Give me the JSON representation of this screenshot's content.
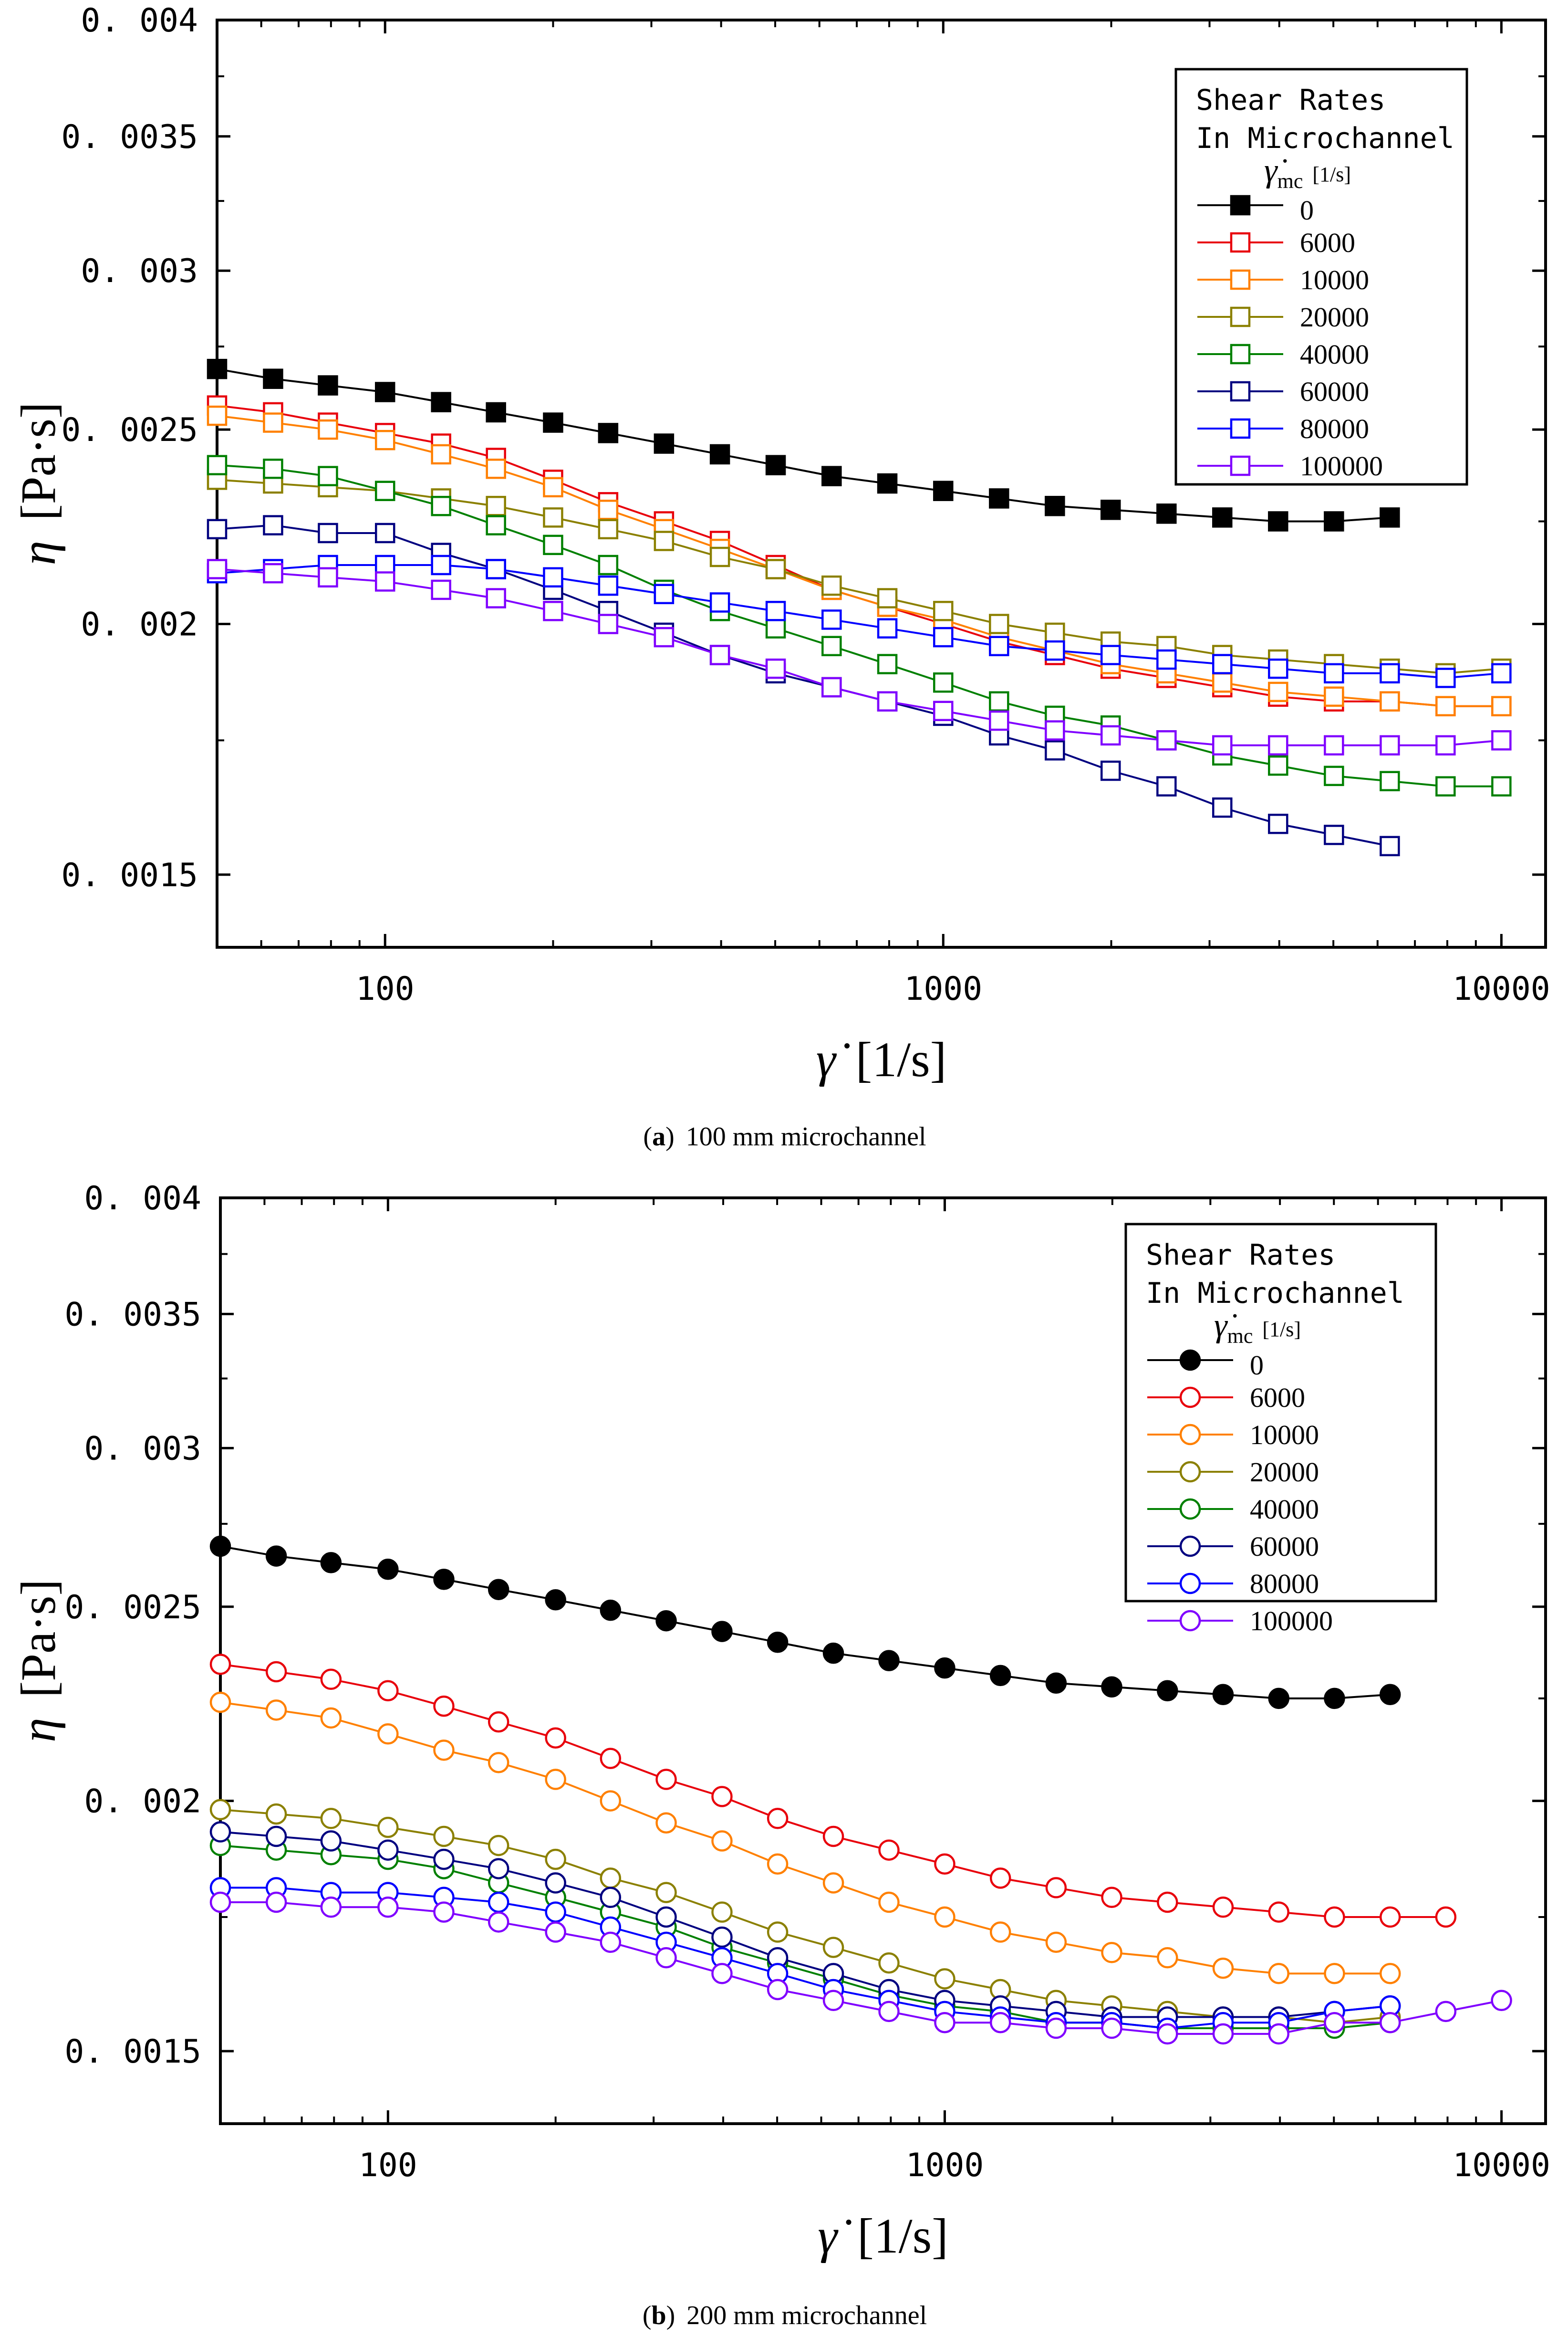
{
  "chart_data": [
    {
      "type": "line",
      "caption_letter": "a",
      "caption_text": "100 mm microchannel",
      "xlabel_symbol": "γ̇",
      "xlabel_unit": "[1/s]",
      "ylabel_symbol": "η",
      "ylabel_unit": "[Pa·s]",
      "xscale": "log",
      "yscale": "log",
      "xlim": [
        50,
        12000
      ],
      "ylim": [
        0.00138,
        0.004
      ],
      "xticks": [
        100,
        1000,
        10000
      ],
      "xtick_labels": [
        "100",
        "1000",
        "10000"
      ],
      "yticks": [
        0.0015,
        0.002,
        0.0025,
        0.003,
        0.0035,
        0.004
      ],
      "ytick_labels": [
        "0.0015",
        "0.002",
        "0.0025",
        "0.003",
        "0.0035",
        "0.004"
      ],
      "legend": {
        "placement": "top-right",
        "title_line1": "Shear Rates",
        "title_line2": "In Microchannel",
        "title_symbol": "γ̇",
        "title_subscript": "mc",
        "title_unit": "[1/s]"
      },
      "marker": "square",
      "x": [
        50,
        63,
        79,
        100,
        126,
        158,
        200,
        251,
        316,
        398,
        501,
        631,
        794,
        1000,
        1259,
        1585,
        1995,
        2512,
        3162,
        3981,
        5012,
        6310,
        7943,
        10000
      ],
      "series": [
        {
          "name": "0",
          "color": "#000000",
          "filled": true,
          "values": [
            0.00268,
            0.00265,
            0.00263,
            0.00261,
            0.00258,
            0.00255,
            0.00252,
            0.00249,
            0.00246,
            0.00243,
            0.0024,
            0.00237,
            0.00235,
            0.00233,
            0.00231,
            0.00229,
            0.00228,
            0.00227,
            0.00226,
            0.00225,
            0.00225,
            0.00226,
            null,
            null
          ]
        },
        {
          "name": "6000",
          "color": "#e8000b",
          "filled": false,
          "values": [
            0.00257,
            0.00255,
            0.00252,
            0.00249,
            0.00246,
            0.00242,
            0.00236,
            0.0023,
            0.00225,
            0.0022,
            0.00214,
            0.00208,
            0.00204,
            0.002,
            0.00196,
            0.00193,
            0.0019,
            0.00188,
            0.00186,
            0.00184,
            0.00183,
            0.00183,
            0.00182,
            0.00182
          ]
        },
        {
          "name": "10000",
          "color": "#ff8000",
          "filled": false,
          "values": [
            0.00254,
            0.00252,
            0.0025,
            0.00247,
            0.00243,
            0.00239,
            0.00234,
            0.00228,
            0.00223,
            0.00218,
            0.00213,
            0.00208,
            0.00204,
            0.00201,
            0.00197,
            0.00194,
            0.00191,
            0.00189,
            0.00187,
            0.00185,
            0.00184,
            0.00183,
            0.00182,
            0.00182
          ]
        },
        {
          "name": "20000",
          "color": "#8b8000",
          "filled": false,
          "values": [
            0.00236,
            0.00235,
            0.00234,
            0.00233,
            0.00231,
            0.00229,
            0.00226,
            0.00223,
            0.0022,
            0.00216,
            0.00213,
            0.00209,
            0.00206,
            0.00203,
            0.002,
            0.00198,
            0.00196,
            0.00195,
            0.00193,
            0.00192,
            0.00191,
            0.0019,
            0.00189,
            0.0019
          ]
        },
        {
          "name": "40000",
          "color": "#008000",
          "filled": false,
          "values": [
            0.0024,
            0.00239,
            0.00237,
            0.00233,
            0.00229,
            0.00224,
            0.00219,
            0.00214,
            0.00208,
            0.00203,
            0.00199,
            0.00195,
            0.00191,
            0.00187,
            0.00183,
            0.0018,
            0.00178,
            0.00175,
            0.00172,
            0.0017,
            0.00168,
            0.00167,
            0.00166,
            0.00166
          ]
        },
        {
          "name": "60000",
          "color": "#000080",
          "filled": false,
          "values": [
            0.00223,
            0.00224,
            0.00222,
            0.00222,
            0.00217,
            0.00213,
            0.00208,
            0.00203,
            0.00198,
            0.00193,
            0.00189,
            0.00186,
            0.00183,
            0.0018,
            0.00176,
            0.00173,
            0.00169,
            0.00166,
            0.00162,
            0.00159,
            0.00157,
            0.00155,
            null,
            null
          ]
        },
        {
          "name": "80000",
          "color": "#0000ff",
          "filled": false,
          "values": [
            0.00212,
            0.00213,
            0.00214,
            0.00214,
            0.00214,
            0.00213,
            0.00211,
            0.00209,
            0.00207,
            0.00205,
            0.00203,
            0.00201,
            0.00199,
            0.00197,
            0.00195,
            0.00194,
            0.00193,
            0.00192,
            0.00191,
            0.0019,
            0.00189,
            0.00189,
            0.00188,
            0.00189
          ]
        },
        {
          "name": "100000",
          "color": "#8000ff",
          "filled": false,
          "values": [
            0.00213,
            0.00212,
            0.00211,
            0.0021,
            0.00208,
            0.00206,
            0.00203,
            0.002,
            0.00197,
            0.00193,
            0.0019,
            0.00186,
            0.00183,
            0.00181,
            0.00179,
            0.00177,
            0.00176,
            0.00175,
            0.00174,
            0.00174,
            0.00174,
            0.00174,
            0.00174,
            0.00175
          ]
        }
      ]
    },
    {
      "type": "line",
      "caption_letter": "b",
      "caption_text": "200 mm microchannel",
      "xlabel_symbol": "γ̇",
      "xlabel_unit": "[1/s]",
      "ylabel_symbol": "η",
      "ylabel_unit": "[Pa·s]",
      "xscale": "log",
      "yscale": "log",
      "xlim": [
        50,
        12000
      ],
      "ylim": [
        0.00138,
        0.004
      ],
      "xticks": [
        100,
        1000,
        10000
      ],
      "xtick_labels": [
        "100",
        "1000",
        "10000"
      ],
      "yticks": [
        0.0015,
        0.002,
        0.0025,
        0.003,
        0.0035,
        0.004
      ],
      "ytick_labels": [
        "0.0015",
        "0.002",
        "0.0025",
        "0.003",
        "0.0035",
        "0.004"
      ],
      "legend": {
        "placement": "top-right",
        "title_line1": "Shear Rates",
        "title_line2": "In Microchannel",
        "title_symbol": "γ̇",
        "title_subscript": "mc",
        "title_unit": "[1/s]"
      },
      "marker": "circle",
      "x": [
        50,
        63,
        79,
        100,
        126,
        158,
        200,
        251,
        316,
        398,
        501,
        631,
        794,
        1000,
        1259,
        1585,
        1995,
        2512,
        3162,
        3981,
        5012,
        6310,
        7943,
        10000
      ],
      "series": [
        {
          "name": "0",
          "color": "#000000",
          "filled": true,
          "values": [
            0.00268,
            0.00265,
            0.00263,
            0.00261,
            0.00258,
            0.00255,
            0.00252,
            0.00249,
            0.00246,
            0.00243,
            0.0024,
            0.00237,
            0.00235,
            0.00233,
            0.00231,
            0.00229,
            0.00228,
            0.00227,
            0.00226,
            0.00225,
            0.00225,
            0.00226,
            null,
            null
          ]
        },
        {
          "name": "6000",
          "color": "#e8000b",
          "filled": false,
          "values": [
            0.00234,
            0.00232,
            0.0023,
            0.00227,
            0.00223,
            0.00219,
            0.00215,
            0.0021,
            0.00205,
            0.00201,
            0.00196,
            0.00192,
            0.00189,
            0.00186,
            0.00183,
            0.00181,
            0.00179,
            0.00178,
            0.00177,
            0.00176,
            0.00175,
            0.00175,
            0.00175,
            null
          ]
        },
        {
          "name": "10000",
          "color": "#ff8000",
          "filled": false,
          "values": [
            0.00224,
            0.00222,
            0.0022,
            0.00216,
            0.00212,
            0.00209,
            0.00205,
            0.002,
            0.00195,
            0.00191,
            0.00186,
            0.00182,
            0.00178,
            0.00175,
            0.00172,
            0.0017,
            0.00168,
            0.00167,
            0.00165,
            0.00164,
            0.00164,
            0.00164,
            null,
            null
          ]
        },
        {
          "name": "20000",
          "color": "#8b8000",
          "filled": false,
          "values": [
            0.00198,
            0.00197,
            0.00196,
            0.00194,
            0.00192,
            0.0019,
            0.00187,
            0.00183,
            0.0018,
            0.00176,
            0.00172,
            0.00169,
            0.00166,
            0.00163,
            0.00161,
            0.00159,
            0.00158,
            0.00157,
            0.00156,
            0.00156,
            0.00155,
            0.00156,
            null,
            null
          ]
        },
        {
          "name": "40000",
          "color": "#008000",
          "filled": false,
          "values": [
            0.0019,
            0.00189,
            0.00188,
            0.00187,
            0.00185,
            0.00182,
            0.00179,
            0.00176,
            0.00173,
            0.00169,
            0.00166,
            0.00163,
            0.0016,
            0.00158,
            0.00157,
            0.00155,
            0.00155,
            0.00154,
            0.00154,
            0.00154,
            0.00154,
            0.00155,
            null,
            null
          ]
        },
        {
          "name": "60000",
          "color": "#000080",
          "filled": false,
          "values": [
            0.00193,
            0.00192,
            0.00191,
            0.00189,
            0.00187,
            0.00185,
            0.00182,
            0.00179,
            0.00175,
            0.00171,
            0.00167,
            0.00164,
            0.00161,
            0.00159,
            0.00158,
            0.00157,
            0.00156,
            0.00156,
            0.00156,
            0.00156,
            0.00157,
            0.00158,
            null,
            null
          ]
        },
        {
          "name": "80000",
          "color": "#0000ff",
          "filled": false,
          "values": [
            0.00181,
            0.00181,
            0.0018,
            0.0018,
            0.00179,
            0.00178,
            0.00176,
            0.00173,
            0.0017,
            0.00167,
            0.00164,
            0.00161,
            0.00159,
            0.00157,
            0.00156,
            0.00155,
            0.00155,
            0.00154,
            0.00155,
            0.00155,
            0.00157,
            0.00158,
            null,
            null
          ]
        },
        {
          "name": "100000",
          "color": "#8000ff",
          "filled": false,
          "values": [
            0.00178,
            0.00178,
            0.00177,
            0.00177,
            0.00176,
            0.00174,
            0.00172,
            0.0017,
            0.00167,
            0.00164,
            0.00161,
            0.00159,
            0.00157,
            0.00155,
            0.00155,
            0.00154,
            0.00154,
            0.00153,
            0.00153,
            0.00153,
            0.00155,
            0.00155,
            0.00157,
            0.00159
          ]
        }
      ]
    }
  ]
}
